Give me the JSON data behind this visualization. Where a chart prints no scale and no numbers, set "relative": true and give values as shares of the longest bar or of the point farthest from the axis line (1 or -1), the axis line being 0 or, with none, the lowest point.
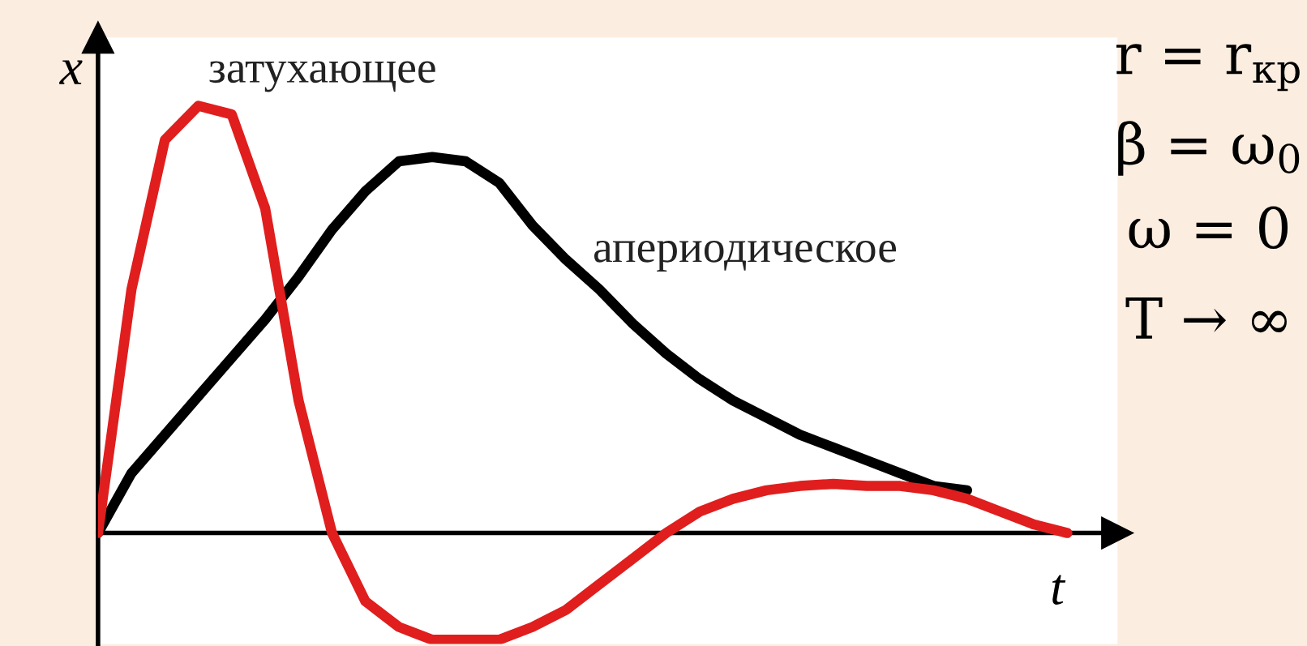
{
  "chart_data": {
    "type": "line",
    "relative": true,
    "xlabel": "t",
    "ylabel": "x",
    "categories": [
      null,
      null,
      null,
      null,
      null,
      null,
      null,
      null,
      null,
      null,
      null,
      null,
      null,
      null,
      null,
      null,
      null,
      null,
      null,
      null,
      null,
      null,
      null,
      null,
      null,
      null,
      null,
      null,
      null,
      null
    ],
    "series": [
      {
        "name": "апериодическое",
        "color": "#000000",
        "values": [
          0,
          0.14,
          0.23,
          0.32,
          0.41,
          0.5,
          0.6,
          0.71,
          0.8,
          0.87,
          0.88,
          0.87,
          0.82,
          0.72,
          0.64,
          0.57,
          0.49,
          0.42,
          0.36,
          0.31,
          0.27,
          0.23,
          0.2,
          0.17,
          0.14,
          0.11,
          0.1,
          null,
          null,
          null
        ]
      },
      {
        "name": "затухающее",
        "color": "#e01e1e",
        "values": [
          0,
          0.57,
          0.92,
          1,
          0.98,
          0.76,
          0.31,
          0,
          -0.16,
          -0.22,
          -0.25,
          -0.25,
          -0.25,
          -0.22,
          -0.18,
          -0.12,
          -0.06,
          0,
          0.05,
          0.08,
          0.1,
          0.11,
          0.115,
          0.11,
          0.11,
          0.1,
          0.08,
          0.05,
          0.02,
          0
        ]
      }
    ],
    "annotations": [
      "r = r$_{кр}$",
      "β = ω$_{0}$",
      "ω = 0",
      "T → ∞"
    ],
    "marker": "none",
    "line_style": "solid",
    "grid": false,
    "legend": false
  }
}
